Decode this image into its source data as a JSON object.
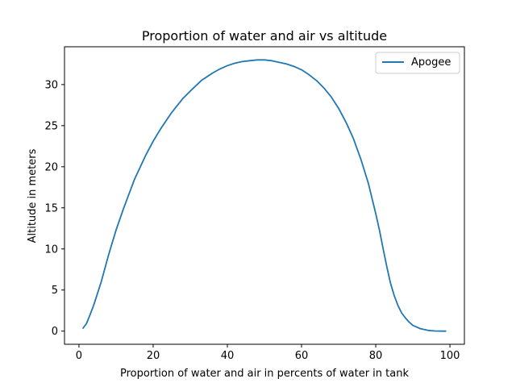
{
  "chart_data": {
    "type": "line",
    "title": "Proportion of water and air vs altitude",
    "xlabel": "Proportion of water and air in percents of water in tank",
    "ylabel": "Altitude in meters",
    "xlim": [
      -3.9,
      103.9
    ],
    "ylim": [
      -1.6,
      34.6
    ],
    "xticks": [
      0,
      20,
      40,
      60,
      80,
      100
    ],
    "yticks": [
      0,
      5,
      10,
      15,
      20,
      25,
      30
    ],
    "xtick_labels": [
      "0",
      "20",
      "40",
      "60",
      "80",
      "100"
    ],
    "ytick_labels": [
      "0",
      "5",
      "10",
      "15",
      "20",
      "25",
      "30"
    ],
    "grid": false,
    "legend_position": "top-right",
    "series": [
      {
        "name": "Apogee",
        "color": "#1f77b4",
        "x": [
          1,
          2,
          3,
          4,
          5,
          6,
          8,
          10,
          12,
          15,
          18,
          20,
          22,
          25,
          28,
          30,
          33,
          36,
          38,
          40,
          42,
          44,
          46,
          48,
          50,
          52,
          54,
          56,
          58,
          60,
          62,
          64,
          66,
          68,
          70,
          72,
          74,
          76,
          78,
          80,
          81,
          82,
          83,
          84,
          85,
          86,
          87,
          88,
          89,
          90,
          91,
          92,
          93,
          94,
          95,
          96,
          97,
          98,
          99
        ],
        "y": [
          0.3,
          0.9,
          2.0,
          3.2,
          4.6,
          6.0,
          9.3,
          12.3,
          14.9,
          18.5,
          21.4,
          23.1,
          24.6,
          26.6,
          28.3,
          29.2,
          30.5,
          31.4,
          31.9,
          32.3,
          32.6,
          32.8,
          32.9,
          33.0,
          33.0,
          32.9,
          32.7,
          32.5,
          32.2,
          31.8,
          31.2,
          30.5,
          29.6,
          28.5,
          27.1,
          25.4,
          23.4,
          20.9,
          18.0,
          14.3,
          12.3,
          10.0,
          7.8,
          5.8,
          4.3,
          3.1,
          2.2,
          1.6,
          1.1,
          0.7,
          0.5,
          0.3,
          0.2,
          0.1,
          0.05,
          0.02,
          0.01,
          0.0,
          0.0
        ]
      }
    ]
  }
}
